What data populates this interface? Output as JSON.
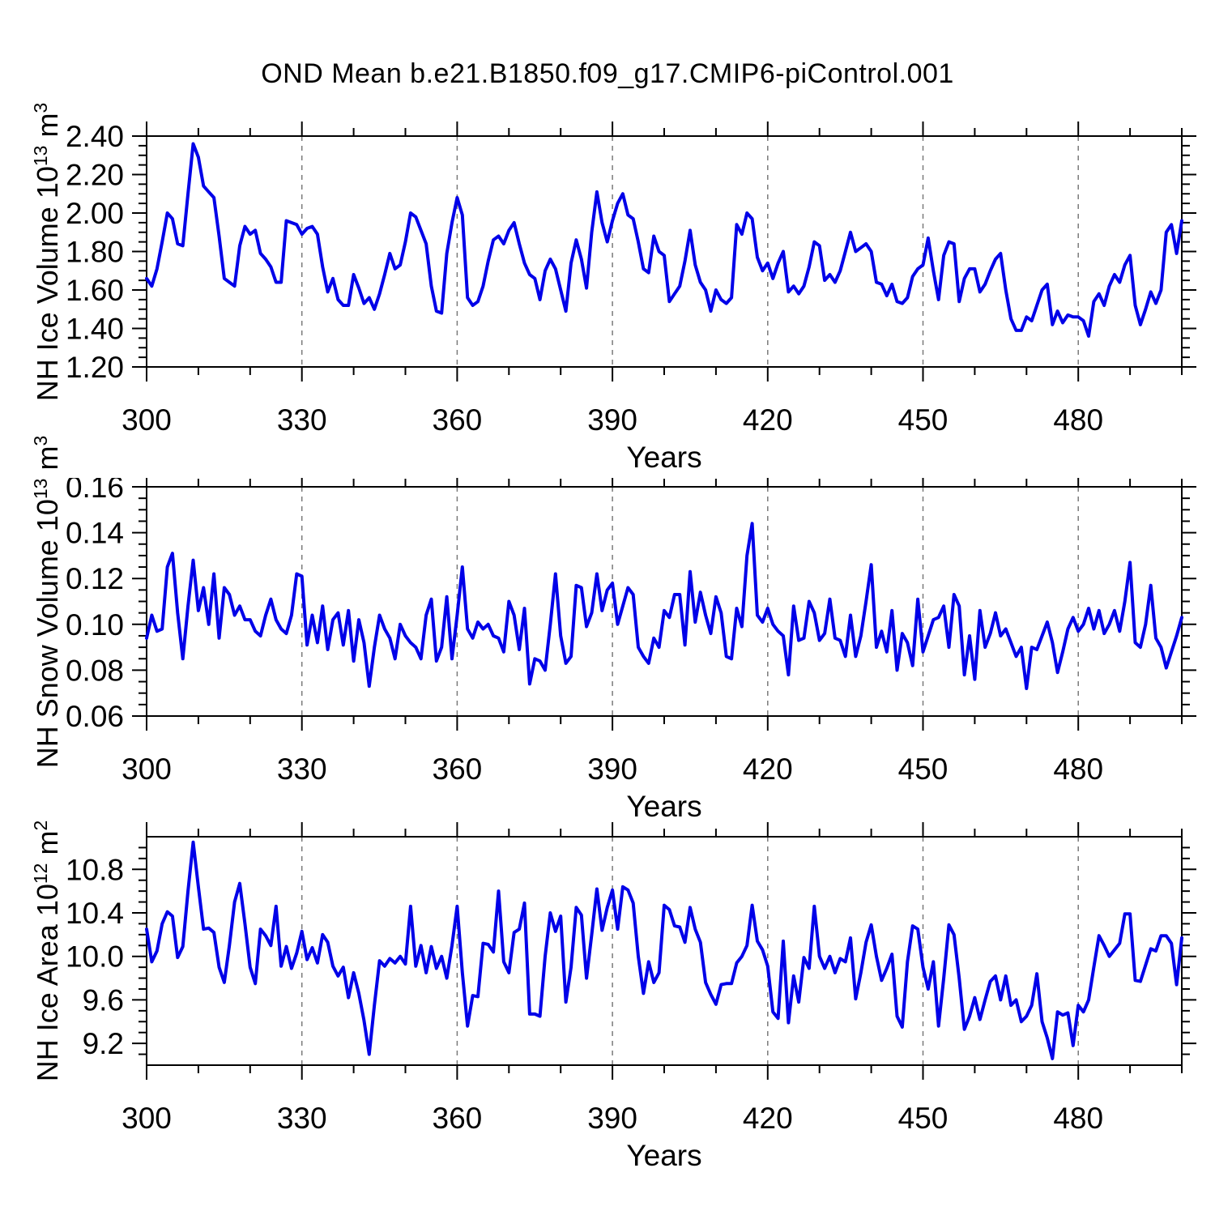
{
  "title": "OND Mean b.e21.B1850.f09_g17.CMIP6-piControl.001",
  "colors": {
    "line": "#0000e8",
    "grid": "#7a7a7a",
    "axis": "#000000"
  },
  "chart_data": [
    {
      "type": "line",
      "ylabel": "NH Ice Volume 10^13 m^3",
      "ylabel_parts": {
        "pre": "NH Ice Volume 10",
        "exp1": "13",
        "mid": " m",
        "exp2": "3"
      },
      "xlabel": "Years",
      "xlim": [
        300,
        500
      ],
      "ylim": [
        1.2,
        2.4
      ],
      "x_start": 300,
      "x_step": 1,
      "x_major_ticks": [
        300,
        330,
        360,
        390,
        420,
        450,
        480
      ],
      "x_minor_step": 10,
      "grid_x": [
        330,
        360,
        390,
        420,
        450,
        480
      ],
      "y_major_ticks": [
        1.2,
        1.4,
        1.6,
        1.8,
        2.0,
        2.2,
        2.4
      ],
      "y_tick_labels": [
        "1.20",
        "1.40",
        "1.60",
        "1.80",
        "2.00",
        "2.20",
        "2.40"
      ],
      "y_minor_step": 0.05,
      "values": [
        1.66,
        1.62,
        1.71,
        1.85,
        2.0,
        1.97,
        1.84,
        1.83,
        2.1,
        2.36,
        2.29,
        2.14,
        2.11,
        2.08,
        1.88,
        1.66,
        1.64,
        1.62,
        1.83,
        1.93,
        1.89,
        1.91,
        1.79,
        1.76,
        1.72,
        1.64,
        1.64,
        1.96,
        1.95,
        1.94,
        1.89,
        1.92,
        1.93,
        1.89,
        1.72,
        1.59,
        1.66,
        1.55,
        1.52,
        1.52,
        1.68,
        1.61,
        1.53,
        1.56,
        1.5,
        1.58,
        1.68,
        1.79,
        1.71,
        1.73,
        1.85,
        2.0,
        1.98,
        1.91,
        1.84,
        1.62,
        1.49,
        1.48,
        1.79,
        1.95,
        2.08,
        1.99,
        1.56,
        1.52,
        1.54,
        1.62,
        1.75,
        1.86,
        1.88,
        1.84,
        1.91,
        1.95,
        1.84,
        1.74,
        1.68,
        1.66,
        1.55,
        1.7,
        1.76,
        1.71,
        1.6,
        1.49,
        1.74,
        1.86,
        1.76,
        1.61,
        1.9,
        2.11,
        1.95,
        1.85,
        1.96,
        2.05,
        2.1,
        1.99,
        1.97,
        1.85,
        1.71,
        1.69,
        1.88,
        1.8,
        1.78,
        1.54,
        1.58,
        1.62,
        1.75,
        1.91,
        1.73,
        1.64,
        1.6,
        1.49,
        1.6,
        1.55,
        1.53,
        1.56,
        1.94,
        1.89,
        2.0,
        1.97,
        1.77,
        1.7,
        1.74,
        1.66,
        1.74,
        1.8,
        1.59,
        1.62,
        1.58,
        1.62,
        1.72,
        1.85,
        1.83,
        1.65,
        1.68,
        1.64,
        1.7,
        1.8,
        1.9,
        1.8,
        1.82,
        1.84,
        1.8,
        1.64,
        1.63,
        1.57,
        1.63,
        1.54,
        1.53,
        1.56,
        1.67,
        1.71,
        1.73,
        1.87,
        1.7,
        1.55,
        1.78,
        1.85,
        1.84,
        1.54,
        1.66,
        1.71,
        1.71,
        1.59,
        1.63,
        1.7,
        1.76,
        1.79,
        1.6,
        1.45,
        1.39,
        1.39,
        1.46,
        1.44,
        1.52,
        1.6,
        1.63,
        1.42,
        1.49,
        1.43,
        1.47,
        1.46,
        1.46,
        1.44,
        1.36,
        1.54,
        1.58,
        1.52,
        1.62,
        1.68,
        1.64,
        1.73,
        1.78,
        1.52,
        1.42,
        1.5,
        1.59,
        1.53,
        1.6,
        1.9,
        1.94,
        1.79,
        1.96
      ]
    },
    {
      "type": "line",
      "ylabel": "NH Snow Volume 10^13 m^3",
      "ylabel_parts": {
        "pre": "NH Snow Volume 10",
        "exp1": "13",
        "mid": " m",
        "exp2": "3"
      },
      "xlabel": "Years",
      "xlim": [
        300,
        500
      ],
      "ylim": [
        0.06,
        0.16
      ],
      "x_start": 300,
      "x_step": 1,
      "x_major_ticks": [
        300,
        330,
        360,
        390,
        420,
        450,
        480
      ],
      "x_minor_step": 10,
      "grid_x": [
        330,
        360,
        390,
        420,
        450,
        480
      ],
      "y_major_ticks": [
        0.06,
        0.08,
        0.1,
        0.12,
        0.14,
        0.16
      ],
      "y_tick_labels": [
        "0.06",
        "0.08",
        "0.10",
        "0.12",
        "0.14",
        "0.16"
      ],
      "y_minor_step": 0.005,
      "values": [
        0.094,
        0.104,
        0.097,
        0.098,
        0.125,
        0.131,
        0.105,
        0.085,
        0.108,
        0.128,
        0.106,
        0.116,
        0.1,
        0.122,
        0.094,
        0.116,
        0.113,
        0.104,
        0.108,
        0.102,
        0.102,
        0.097,
        0.095,
        0.104,
        0.111,
        0.102,
        0.098,
        0.096,
        0.104,
        0.122,
        0.121,
        0.091,
        0.104,
        0.092,
        0.108,
        0.089,
        0.102,
        0.105,
        0.091,
        0.106,
        0.084,
        0.102,
        0.092,
        0.073,
        0.09,
        0.104,
        0.098,
        0.094,
        0.085,
        0.1,
        0.095,
        0.092,
        0.09,
        0.085,
        0.104,
        0.111,
        0.084,
        0.09,
        0.112,
        0.085,
        0.104,
        0.125,
        0.098,
        0.094,
        0.101,
        0.098,
        0.1,
        0.095,
        0.094,
        0.088,
        0.11,
        0.104,
        0.089,
        0.107,
        0.074,
        0.085,
        0.084,
        0.08,
        0.1,
        0.122,
        0.095,
        0.083,
        0.086,
        0.117,
        0.116,
        0.099,
        0.105,
        0.122,
        0.106,
        0.115,
        0.118,
        0.1,
        0.108,
        0.116,
        0.113,
        0.09,
        0.086,
        0.083,
        0.094,
        0.09,
        0.106,
        0.103,
        0.113,
        0.113,
        0.091,
        0.123,
        0.101,
        0.114,
        0.104,
        0.096,
        0.112,
        0.105,
        0.086,
        0.085,
        0.107,
        0.099,
        0.13,
        0.144,
        0.104,
        0.101,
        0.107,
        0.1,
        0.097,
        0.095,
        0.078,
        0.108,
        0.093,
        0.094,
        0.11,
        0.105,
        0.093,
        0.096,
        0.111,
        0.094,
        0.093,
        0.086,
        0.104,
        0.086,
        0.095,
        0.11,
        0.126,
        0.09,
        0.097,
        0.088,
        0.106,
        0.08,
        0.096,
        0.092,
        0.082,
        0.111,
        0.088,
        0.095,
        0.102,
        0.103,
        0.108,
        0.09,
        0.113,
        0.108,
        0.078,
        0.095,
        0.076,
        0.106,
        0.09,
        0.096,
        0.105,
        0.095,
        0.098,
        0.092,
        0.086,
        0.09,
        0.072,
        0.09,
        0.089,
        0.095,
        0.101,
        0.092,
        0.079,
        0.088,
        0.098,
        0.103,
        0.097,
        0.1,
        0.107,
        0.098,
        0.106,
        0.096,
        0.1,
        0.106,
        0.097,
        0.11,
        0.127,
        0.092,
        0.09,
        0.1,
        0.117,
        0.094,
        0.09,
        0.081,
        0.088,
        0.095,
        0.103
      ]
    },
    {
      "type": "line",
      "ylabel": "NH Ice Area 10^12 m^2",
      "ylabel_parts": {
        "pre": "NH Ice Area 10",
        "exp1": "12",
        "mid": " m",
        "exp2": "2"
      },
      "xlabel": "Years",
      "xlim": [
        300,
        500
      ],
      "ylim": [
        9.0,
        11.1
      ],
      "x_start": 300,
      "x_step": 1,
      "x_major_ticks": [
        300,
        330,
        360,
        390,
        420,
        450,
        480
      ],
      "x_minor_step": 10,
      "grid_x": [
        330,
        360,
        390,
        420,
        450,
        480
      ],
      "y_major_ticks": [
        9.2,
        9.6,
        10.0,
        10.4,
        10.8
      ],
      "y_tick_labels": [
        "9.2",
        "9.6",
        "10.0",
        "10.4",
        "10.8"
      ],
      "y_minor_step": 0.1,
      "values": [
        10.25,
        9.95,
        10.05,
        10.3,
        10.41,
        10.37,
        9.99,
        10.09,
        10.6,
        11.05,
        10.64,
        10.25,
        10.26,
        10.22,
        9.9,
        9.76,
        10.1,
        10.5,
        10.67,
        10.3,
        9.9,
        9.75,
        10.25,
        10.19,
        10.1,
        10.46,
        9.91,
        10.09,
        9.89,
        10.03,
        10.23,
        9.97,
        10.08,
        9.94,
        10.2,
        10.13,
        9.91,
        9.82,
        9.9,
        9.62,
        9.85,
        9.66,
        9.41,
        9.1,
        9.55,
        9.96,
        9.91,
        9.98,
        9.94,
        10.0,
        9.93,
        10.46,
        9.91,
        10.1,
        9.85,
        10.09,
        9.89,
        10.0,
        9.8,
        10.1,
        10.46,
        9.85,
        9.36,
        9.64,
        9.63,
        10.12,
        10.11,
        10.04,
        10.6,
        9.95,
        9.85,
        10.22,
        10.25,
        10.49,
        9.47,
        9.47,
        9.45,
        10.0,
        10.4,
        10.23,
        10.37,
        9.58,
        9.9,
        10.45,
        10.38,
        9.8,
        10.2,
        10.62,
        10.24,
        10.45,
        10.61,
        10.25,
        10.64,
        10.61,
        10.49,
        10.0,
        9.66,
        9.95,
        9.76,
        9.85,
        10.47,
        10.43,
        10.28,
        10.27,
        10.13,
        10.45,
        10.25,
        10.13,
        9.76,
        9.65,
        9.56,
        9.74,
        9.75,
        9.75,
        9.94,
        10.0,
        10.1,
        10.47,
        10.14,
        10.06,
        9.91,
        9.49,
        9.43,
        10.14,
        9.39,
        9.82,
        9.58,
        9.99,
        9.89,
        10.46,
        10.0,
        9.89,
        10.0,
        9.85,
        9.98,
        9.95,
        10.17,
        9.61,
        9.85,
        10.13,
        10.29,
        10.0,
        9.78,
        9.89,
        10.02,
        9.45,
        9.35,
        9.95,
        10.28,
        10.25,
        9.9,
        9.7,
        9.95,
        9.36,
        9.8,
        10.29,
        10.2,
        9.8,
        9.33,
        9.45,
        9.62,
        9.42,
        9.6,
        9.77,
        9.82,
        9.6,
        9.82,
        9.55,
        9.6,
        9.4,
        9.45,
        9.55,
        9.84,
        9.4,
        9.25,
        9.06,
        9.49,
        9.46,
        9.48,
        9.18,
        9.55,
        9.49,
        9.6,
        9.9,
        10.19,
        10.1,
        10.0,
        10.06,
        10.12,
        10.39,
        10.39,
        9.78,
        9.77,
        9.92,
        10.07,
        10.05,
        10.19,
        10.19,
        10.12,
        9.74,
        10.17
      ]
    }
  ]
}
